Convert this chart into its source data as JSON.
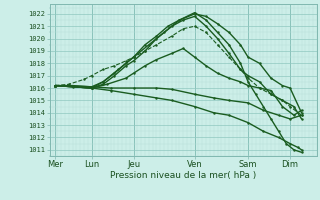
{
  "background_color": "#cceee8",
  "plot_bg_color": "#cceee8",
  "grid_color_minor": "#b8ddd8",
  "grid_color_major": "#90c8c0",
  "line_color": "#1a5c20",
  "xlabel": "Pression niveau de la mer( hPa )",
  "xlim": [
    0,
    7.0
  ],
  "ylim": [
    1010.5,
    1022.8
  ],
  "yticks": [
    1011,
    1012,
    1013,
    1014,
    1015,
    1016,
    1017,
    1018,
    1019,
    1020,
    1021,
    1022
  ],
  "xtick_labels": [
    "Mer",
    "Lun",
    "Jeu",
    "Ven",
    "Sam",
    "Dim"
  ],
  "xtick_positions": [
    0.15,
    1.1,
    2.2,
    3.8,
    5.2,
    6.3
  ],
  "day_vlines": [
    0.15,
    1.1,
    2.2,
    3.8,
    5.2,
    6.3
  ],
  "lines": [
    {
      "x": [
        0.15,
        1.1,
        1.4,
        1.7,
        2.0,
        2.2,
        2.5,
        2.8,
        3.1,
        3.4,
        3.8,
        4.1,
        4.4,
        4.7,
        5.0,
        5.2,
        5.5,
        5.8,
        6.1,
        6.3,
        6.6
      ],
      "y": [
        1016.2,
        1016.1,
        1016.5,
        1017.2,
        1018.0,
        1018.5,
        1019.5,
        1020.2,
        1021.0,
        1021.5,
        1022.0,
        1021.8,
        1021.2,
        1020.5,
        1019.5,
        1018.5,
        1018.0,
        1016.8,
        1016.2,
        1016.0,
        1014.0
      ],
      "style": "-",
      "marker": ".",
      "ms": 1.5,
      "lw": 1.0
    },
    {
      "x": [
        0.15,
        1.1,
        1.4,
        1.8,
        2.2,
        2.6,
        3.0,
        3.4,
        3.8,
        4.1,
        4.4,
        4.7,
        5.0,
        5.2,
        5.4,
        5.6,
        5.8,
        6.0,
        6.2,
        6.4,
        6.6
      ],
      "y": [
        1016.2,
        1016.0,
        1016.5,
        1017.5,
        1018.5,
        1019.5,
        1020.5,
        1021.5,
        1022.1,
        1021.5,
        1020.5,
        1019.5,
        1018.0,
        1016.5,
        1015.5,
        1014.5,
        1013.5,
        1012.5,
        1011.5,
        1011.0,
        1010.8
      ],
      "style": "-",
      "marker": ".",
      "ms": 1.5,
      "lw": 1.0
    },
    {
      "x": [
        0.15,
        1.1,
        1.4,
        1.7,
        2.0,
        2.2,
        2.5,
        2.8,
        3.2,
        3.5,
        3.8,
        4.1,
        4.4,
        4.7,
        5.0,
        5.2,
        5.5,
        5.8,
        6.1,
        6.4,
        6.6
      ],
      "y": [
        1016.2,
        1016.0,
        1016.3,
        1017.0,
        1017.8,
        1018.2,
        1019.0,
        1020.0,
        1021.0,
        1021.5,
        1021.8,
        1021.0,
        1020.0,
        1018.8,
        1017.5,
        1017.0,
        1016.5,
        1015.5,
        1015.0,
        1014.5,
        1013.5
      ],
      "style": "-",
      "marker": ".",
      "ms": 1.5,
      "lw": 1.0
    },
    {
      "x": [
        0.15,
        1.1,
        1.5,
        2.0,
        2.2,
        2.5,
        2.8,
        3.2,
        3.5,
        3.8,
        4.1,
        4.4,
        4.7,
        5.0,
        5.2,
        5.5,
        5.8,
        6.1,
        6.4,
        6.6
      ],
      "y": [
        1016.2,
        1016.0,
        1016.3,
        1016.8,
        1017.2,
        1017.8,
        1018.3,
        1018.8,
        1019.2,
        1018.5,
        1017.8,
        1017.2,
        1016.8,
        1016.5,
        1016.2,
        1016.0,
        1015.8,
        1014.5,
        1013.8,
        1014.2
      ],
      "style": "-",
      "marker": ".",
      "ms": 1.5,
      "lw": 1.0
    },
    {
      "x": [
        0.15,
        0.6,
        1.1,
        1.6,
        2.2,
        2.8,
        3.2,
        3.8,
        4.3,
        4.7,
        5.2,
        5.6,
        6.0,
        6.3,
        6.6
      ],
      "y": [
        1016.2,
        1016.2,
        1016.1,
        1016.0,
        1016.0,
        1016.0,
        1015.9,
        1015.5,
        1015.2,
        1015.0,
        1014.8,
        1014.2,
        1013.8,
        1013.5,
        1013.8
      ],
      "style": "-",
      "marker": ".",
      "ms": 1.5,
      "lw": 1.0
    },
    {
      "x": [
        0.15,
        0.6,
        1.1,
        1.6,
        2.2,
        2.8,
        3.2,
        3.8,
        4.3,
        4.7,
        5.2,
        5.6,
        6.0,
        6.3,
        6.5,
        6.6
      ],
      "y": [
        1016.2,
        1016.1,
        1016.0,
        1015.8,
        1015.5,
        1015.2,
        1015.0,
        1014.5,
        1014.0,
        1013.8,
        1013.2,
        1012.5,
        1012.0,
        1011.5,
        1011.2,
        1011.0
      ],
      "style": "-",
      "marker": ".",
      "ms": 1.5,
      "lw": 1.0
    },
    {
      "x": [
        0.15,
        0.5,
        0.9,
        1.1,
        1.4,
        1.7,
        2.0,
        2.2,
        2.5,
        2.8,
        3.2,
        3.5,
        3.8,
        4.1,
        4.4,
        4.7,
        5.0,
        5.2,
        5.5,
        5.8,
        6.1,
        6.3,
        6.6
      ],
      "y": [
        1016.2,
        1016.3,
        1016.7,
        1017.0,
        1017.5,
        1017.8,
        1018.2,
        1018.5,
        1019.0,
        1019.5,
        1020.2,
        1020.8,
        1021.0,
        1020.5,
        1019.5,
        1018.5,
        1017.5,
        1016.8,
        1016.0,
        1015.5,
        1015.0,
        1014.5,
        1013.8
      ],
      "style": "--",
      "marker": ".",
      "ms": 1.5,
      "lw": 0.8
    }
  ]
}
